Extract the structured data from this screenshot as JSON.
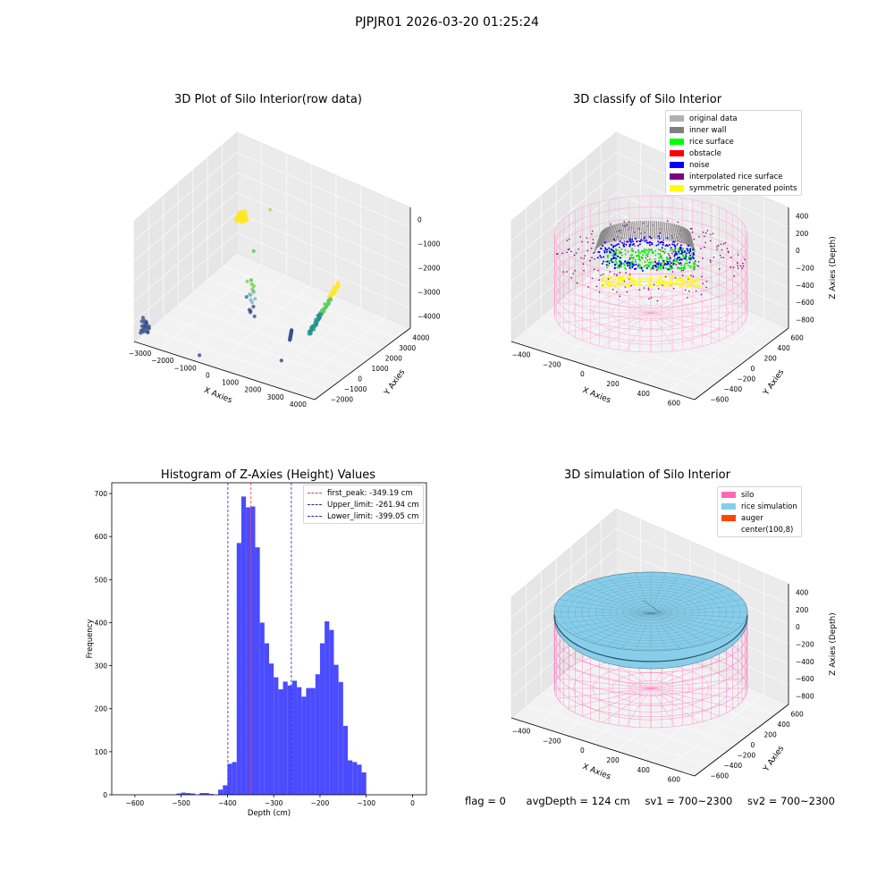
{
  "header": {
    "title": "PJPJR01 2026-03-20 01:25:24"
  },
  "status": {
    "flag": "flag = 0",
    "avg_depth": "avgDepth = 124 cm",
    "sv1": "sv1 = 700~2300",
    "sv2": "sv2 = 700~2300"
  },
  "chart_data": [
    {
      "id": "raw",
      "type": "scatter3d",
      "title": "3D Plot of Silo Interior(row data)",
      "xlabel": "X Axies",
      "ylabel": "Y Axies",
      "zlabel": "Z Axies (Depth)",
      "xticks": [
        "−3000",
        "−2000",
        "−1000",
        "0",
        "1000",
        "2000",
        "3000",
        "4000"
      ],
      "yticks": [
        "−2000",
        "−1000",
        "0",
        "1000",
        "2000",
        "3000",
        "4000"
      ],
      "zticks": [
        "0",
        "−1000",
        "−2000",
        "−3000",
        "−4000"
      ],
      "colormap": [
        "#440154",
        "#3b528b",
        "#21918c",
        "#5ec962",
        "#fde725"
      ],
      "clusters": [
        {
          "x": -3100,
          "y": -1900,
          "z": [
            -3600,
            -4100
          ],
          "n": 22,
          "color": "#3b528b"
        },
        {
          "x": -2000,
          "y": 3000,
          "z": [
            -1200,
            -1500
          ],
          "n": 30,
          "color": "#fde725"
        },
        {
          "x": 300,
          "y": 200,
          "z": [
            -2000,
            -3400
          ],
          "n": 16,
          "color": "#21918c"
        },
        {
          "x": 2500,
          "y": -500,
          "z": [
            -3000,
            -3900
          ],
          "n": 28,
          "color": "#3b528b"
        },
        {
          "x": 3600,
          "y": 1000,
          "z": [
            -1500,
            -3300
          ],
          "n": 70,
          "color": "#5ec962"
        }
      ]
    },
    {
      "id": "classify",
      "type": "scatter3d",
      "title": "3D classify of Silo Interior",
      "xlabel": "X Axies",
      "ylabel": "Y Axies",
      "zlabel": "Z Axies (Depth)",
      "xticks": [
        "−400",
        "−200",
        "0",
        "200",
        "400",
        "600"
      ],
      "yticks": [
        "−600",
        "−400",
        "−200",
        "0",
        "200",
        "400",
        "600"
      ],
      "zticks": [
        "400",
        "200",
        "0",
        "−200",
        "−400",
        "−600",
        "−800"
      ],
      "legend_position": "top-right",
      "legend": [
        {
          "label": "original data",
          "color": "#b0b0b0"
        },
        {
          "label": "inner wall",
          "color": "#808080"
        },
        {
          "label": "rice surface",
          "color": "#00ff00"
        },
        {
          "label": "obstacle",
          "color": "#ff0000"
        },
        {
          "label": "noise",
          "color": "#0000ff"
        },
        {
          "label": "interpolated rice surface",
          "color": "#800080"
        },
        {
          "label": "symmetric generated points",
          "color": "#ffff00"
        }
      ],
      "silo": {
        "radius": 500,
        "z_top": 0,
        "z_bottom": -900,
        "center": [
          100,
          8
        ],
        "color": "#ff69b4"
      }
    },
    {
      "id": "histogram",
      "type": "bar",
      "title": "Histogram of Z-Axies (Height) Values",
      "xlabel": "Depth (cm)",
      "ylabel": "Frequency",
      "xlim": [
        -650,
        30
      ],
      "ylim": [
        0,
        725
      ],
      "xticks": [
        -600,
        -500,
        -400,
        -300,
        -200,
        -100,
        0
      ],
      "yticks": [
        0,
        100,
        200,
        300,
        400,
        500,
        600,
        700
      ],
      "bin_width": 10,
      "bin_start": -510,
      "values": [
        3,
        5,
        4,
        3,
        0,
        4,
        4,
        2,
        0,
        12,
        22,
        72,
        76,
        585,
        693,
        668,
        670,
        575,
        400,
        352,
        305,
        273,
        245,
        263,
        254,
        265,
        250,
        228,
        248,
        248,
        280,
        352,
        403,
        383,
        302,
        262,
        160,
        80,
        76,
        70,
        52
      ],
      "bar_color": "#4b4bff",
      "vlines": [
        {
          "value": -349.19,
          "label": "first_peak: -349.19 cm",
          "color": "#ff3333"
        },
        {
          "value": -261.94,
          "label": "Upper_limit: -261.94 cm",
          "color": "#2222dd"
        },
        {
          "value": -399.05,
          "label": "Lower_limit: -399.05 cm",
          "color": "#2222dd"
        }
      ],
      "legend_position": "top-right"
    },
    {
      "id": "simulation",
      "type": "surface3d",
      "title": "3D simulation of Silo Interior",
      "xlabel": "X Axies",
      "ylabel": "Y Axies",
      "zlabel": "Z Axies (Depth)",
      "xticks": [
        "−400",
        "−200",
        "0",
        "200",
        "400",
        "600"
      ],
      "yticks": [
        "−600",
        "−400",
        "−200",
        "0",
        "200",
        "400",
        "600"
      ],
      "zticks": [
        "400",
        "200",
        "0",
        "−200",
        "−400",
        "−600",
        "−800"
      ],
      "legend_position": "top-right",
      "legend": [
        {
          "label": "silo",
          "color": "#ff69b4"
        },
        {
          "label": "rice simulation",
          "color": "#87ceeb"
        },
        {
          "label": "auger",
          "color": "#ff4500"
        },
        {
          "label": "center(100,8)",
          "color": ""
        }
      ]
    }
  ]
}
